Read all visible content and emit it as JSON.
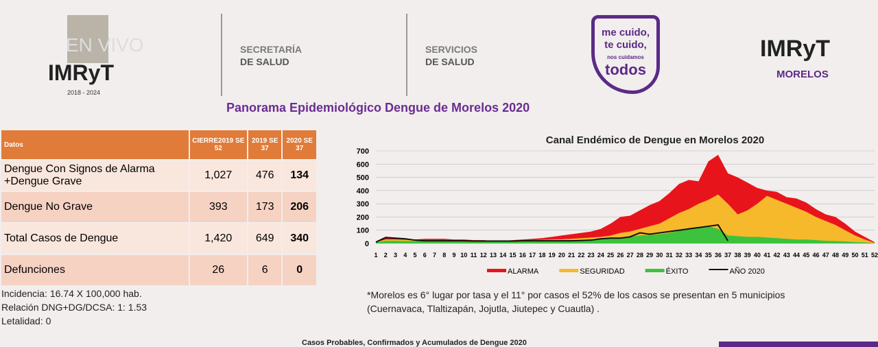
{
  "header": {
    "live": "EN VIVO",
    "logo_left": "IMRyT",
    "period": "2018 - 2024",
    "sec1": "SECRETARÍA",
    "sec2": "DE SALUD",
    "serv1": "SERVICIOS",
    "serv2": "DE SALUD",
    "slogan1": "me cuido,",
    "slogan2": "te cuido,",
    "slogan3": "nos cuidamos",
    "slogan4": "todos",
    "logo_right": "IMRyT",
    "state": "MORELOS"
  },
  "title": "Panorama Epidemiológico Dengue de Morelos 2020",
  "table": {
    "header": [
      "Datos",
      "CIERRE2019 SE 52",
      "2019 SE 37",
      "2020 SE 37"
    ],
    "rows": [
      [
        "Dengue Con Signos de Alarma +Dengue Grave",
        "1,027",
        "476",
        "134"
      ],
      [
        "Dengue No Grave",
        "393",
        "173",
        "206"
      ],
      [
        "Total Casos de Dengue",
        "1,420",
        "649",
        "340"
      ],
      [
        "Defunciones",
        "26",
        "6",
        "0"
      ]
    ]
  },
  "notes": [
    "Incidencia: 16.74 X 100,000 hab.",
    "Relación DNG+DG/DCSA: 1: 1.53",
    "Letalidad: 0"
  ],
  "footnote1": "*Morelos es 6° lugar por tasa y el 11° por casos  el 52% de los casos se presentan en 5 municipios",
  "footnote2": "(Cuernavaca, Tlaltizapán, Jojutla, Jiutepec y Cuautla) .",
  "bottom_title": "Casos Probables, Confirmados y Acumulados de Dengue 2020",
  "chart_data": {
    "type": "area",
    "title": "Canal Endémico de Dengue en Morelos 2020",
    "categories": [
      "1",
      "2",
      "3",
      "4",
      "5",
      "6",
      "7",
      "8",
      "9",
      "10",
      "11",
      "12",
      "13",
      "14",
      "15",
      "16",
      "17",
      "18",
      "19",
      "20",
      "21",
      "22",
      "23",
      "24",
      "25",
      "26",
      "27",
      "28",
      "29",
      "30",
      "31",
      "32",
      "33",
      "34",
      "35",
      "36",
      "37",
      "38",
      "39",
      "40",
      "41",
      "42",
      "43",
      "44",
      "45",
      "46",
      "47",
      "48",
      "49",
      "50",
      "51",
      "52"
    ],
    "ylim": [
      0,
      700
    ],
    "yticks": [
      0,
      100,
      200,
      300,
      400,
      500,
      600,
      700
    ],
    "series": [
      {
        "name": "ALARMA",
        "color": "#e8141c",
        "values": [
          10,
          40,
          40,
          35,
          30,
          35,
          35,
          35,
          30,
          30,
          25,
          25,
          20,
          20,
          25,
          30,
          35,
          40,
          50,
          60,
          70,
          80,
          90,
          110,
          150,
          200,
          210,
          250,
          290,
          320,
          380,
          450,
          480,
          470,
          620,
          670,
          530,
          500,
          460,
          420,
          400,
          390,
          350,
          340,
          310,
          260,
          220,
          200,
          150,
          90,
          50,
          10
        ]
      },
      {
        "name": "SEGURIDAD",
        "color": "#f6b92c",
        "values": [
          10,
          30,
          30,
          28,
          25,
          25,
          25,
          25,
          22,
          20,
          20,
          18,
          18,
          18,
          20,
          22,
          25,
          28,
          30,
          32,
          35,
          40,
          45,
          50,
          60,
          80,
          90,
          110,
          130,
          150,
          190,
          230,
          260,
          300,
          330,
          370,
          300,
          220,
          250,
          300,
          360,
          330,
          300,
          270,
          240,
          200,
          170,
          140,
          100,
          60,
          30,
          5
        ]
      },
      {
        "name": "ÉXITO",
        "color": "#3cc23c",
        "values": [
          8,
          20,
          20,
          18,
          18,
          18,
          18,
          18,
          16,
          16,
          15,
          15,
          14,
          14,
          15,
          16,
          18,
          20,
          22,
          24,
          26,
          28,
          30,
          32,
          40,
          45,
          50,
          60,
          65,
          70,
          80,
          95,
          110,
          120,
          130,
          110,
          60,
          55,
          50,
          50,
          45,
          40,
          35,
          30,
          30,
          25,
          20,
          18,
          15,
          10,
          8,
          3
        ]
      },
      {
        "name": "AÑO 2020",
        "color": "#111111",
        "values": [
          10,
          45,
          40,
          35,
          25,
          20,
          20,
          20,
          20,
          20,
          18,
          18,
          18,
          18,
          18,
          20,
          20,
          20,
          20,
          20,
          20,
          22,
          25,
          35,
          40,
          40,
          50,
          80,
          70,
          80,
          90,
          100,
          110,
          120,
          130,
          140,
          20,
          null,
          null,
          null,
          null,
          null,
          null,
          null,
          null,
          null,
          null,
          null,
          null,
          null,
          null,
          null
        ]
      }
    ]
  }
}
